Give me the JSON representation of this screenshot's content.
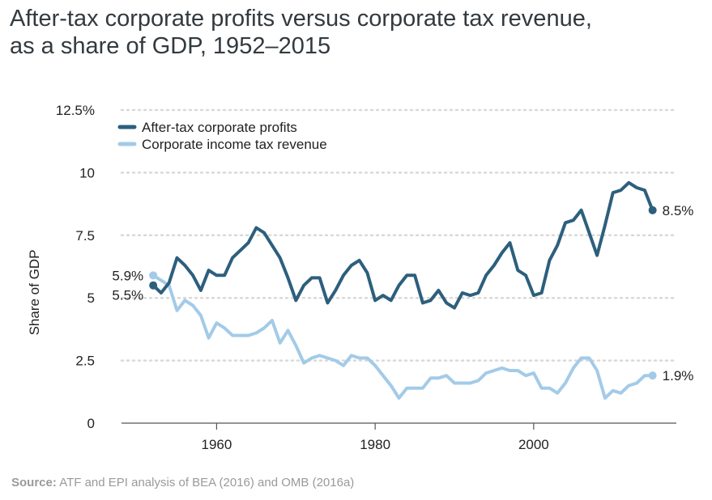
{
  "title": {
    "line1": "After-tax corporate profits versus corporate tax revenue,",
    "line2": "as a share of GDP, 1952–2015"
  },
  "source": {
    "label": "Source:",
    "text": "ATF and EPI analysis of BEA (2016) and OMB (2016a)"
  },
  "colors": {
    "profits": "#2d5f7d",
    "tax": "#a3cbe8",
    "grid": "#d9d9d9",
    "axis": "#555555",
    "text": "#222222"
  },
  "chart_data": {
    "type": "line",
    "ylabel": "Share of GDP",
    "xlabel": "",
    "xlim": [
      1948,
      2018
    ],
    "ylim": [
      0,
      12.5
    ],
    "x_ticks": [
      1960,
      1980,
      2000
    ],
    "x_tick_labels": [
      "1960",
      "1980",
      "2000"
    ],
    "y_ticks": [
      0,
      2.5,
      5,
      7.5,
      10,
      12.5
    ],
    "y_tick_labels": [
      "0",
      "2.5",
      "5",
      "7.5",
      "10",
      "12.5%"
    ],
    "grid": true,
    "legend_position": "top-left",
    "series": [
      {
        "name": "After-tax corporate profits",
        "color": "#2d5f7d",
        "x": [
          1952,
          1953,
          1954,
          1955,
          1956,
          1957,
          1958,
          1959,
          1960,
          1961,
          1962,
          1963,
          1964,
          1965,
          1966,
          1967,
          1968,
          1969,
          1970,
          1971,
          1972,
          1973,
          1974,
          1975,
          1976,
          1977,
          1978,
          1979,
          1980,
          1981,
          1982,
          1983,
          1984,
          1985,
          1986,
          1987,
          1988,
          1989,
          1990,
          1991,
          1992,
          1993,
          1994,
          1995,
          1996,
          1997,
          1998,
          1999,
          2000,
          2001,
          2002,
          2003,
          2004,
          2005,
          2006,
          2007,
          2008,
          2009,
          2010,
          2011,
          2012,
          2013,
          2014,
          2015
        ],
        "values": [
          5.5,
          5.2,
          5.6,
          6.6,
          6.3,
          5.9,
          5.3,
          6.1,
          5.9,
          5.9,
          6.6,
          6.9,
          7.2,
          7.8,
          7.6,
          7.1,
          6.6,
          5.8,
          4.9,
          5.5,
          5.8,
          5.8,
          4.8,
          5.3,
          5.9,
          6.3,
          6.5,
          6.0,
          4.9,
          5.1,
          4.9,
          5.5,
          5.9,
          5.9,
          4.8,
          4.9,
          5.3,
          4.8,
          4.6,
          5.2,
          5.1,
          5.2,
          5.9,
          6.3,
          6.8,
          7.2,
          6.1,
          5.9,
          5.1,
          5.2,
          6.5,
          7.1,
          8.0,
          8.1,
          8.5,
          7.6,
          6.7,
          7.9,
          9.2,
          9.3,
          9.6,
          9.4,
          9.3,
          8.5
        ]
      },
      {
        "name": "Corporate income tax revenue",
        "color": "#a3cbe8",
        "x": [
          1952,
          1953,
          1954,
          1955,
          1956,
          1957,
          1958,
          1959,
          1960,
          1961,
          1962,
          1963,
          1964,
          1965,
          1966,
          1967,
          1968,
          1969,
          1970,
          1971,
          1972,
          1973,
          1974,
          1975,
          1976,
          1977,
          1978,
          1979,
          1980,
          1981,
          1982,
          1983,
          1984,
          1985,
          1986,
          1987,
          1988,
          1989,
          1990,
          1991,
          1992,
          1993,
          1994,
          1995,
          1996,
          1997,
          1998,
          1999,
          2000,
          2001,
          2002,
          2003,
          2004,
          2005,
          2006,
          2007,
          2008,
          2009,
          2010,
          2011,
          2012,
          2013,
          2014,
          2015
        ],
        "values": [
          5.9,
          5.7,
          5.5,
          4.5,
          4.9,
          4.7,
          4.3,
          3.4,
          4.0,
          3.8,
          3.5,
          3.5,
          3.5,
          3.6,
          3.8,
          4.1,
          3.2,
          3.7,
          3.1,
          2.4,
          2.6,
          2.7,
          2.6,
          2.5,
          2.3,
          2.7,
          2.6,
          2.6,
          2.3,
          1.9,
          1.5,
          1.0,
          1.4,
          1.4,
          1.4,
          1.8,
          1.8,
          1.9,
          1.6,
          1.6,
          1.6,
          1.7,
          2.0,
          2.1,
          2.2,
          2.1,
          2.1,
          1.9,
          2.0,
          1.4,
          1.4,
          1.2,
          1.6,
          2.2,
          2.6,
          2.6,
          2.1,
          1.0,
          1.3,
          1.2,
          1.5,
          1.6,
          1.9,
          1.9
        ]
      }
    ],
    "annotations": [
      {
        "text": "5.9%",
        "x": 1952,
        "y": 5.9,
        "side": "left"
      },
      {
        "text": "5.5%",
        "x": 1952,
        "y": 5.5,
        "side": "left"
      },
      {
        "text": "8.5%",
        "x": 2015,
        "y": 8.5,
        "side": "right"
      },
      {
        "text": "1.9%",
        "x": 2015,
        "y": 1.9,
        "side": "right"
      }
    ]
  }
}
